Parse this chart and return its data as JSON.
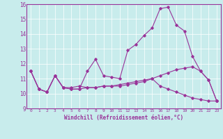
{
  "xlabel": "Windchill (Refroidissement éolien,°C)",
  "xlim": [
    -0.5,
    23.5
  ],
  "ylim": [
    9,
    16
  ],
  "xticks": [
    0,
    1,
    2,
    3,
    4,
    5,
    6,
    7,
    8,
    9,
    10,
    11,
    12,
    13,
    14,
    15,
    16,
    17,
    18,
    19,
    20,
    21,
    22,
    23
  ],
  "yticks": [
    9,
    10,
    11,
    12,
    13,
    14,
    15,
    16
  ],
  "background_color": "#c8ecec",
  "line_color": "#993399",
  "series": [
    [
      11.5,
      10.3,
      10.1,
      11.2,
      10.4,
      10.3,
      10.3,
      11.5,
      12.3,
      11.2,
      11.1,
      11.0,
      12.9,
      13.3,
      13.9,
      14.4,
      15.7,
      15.8,
      14.6,
      14.2,
      12.5,
      11.5,
      10.9,
      9.5
    ],
    [
      11.5,
      10.3,
      10.1,
      11.2,
      10.4,
      10.3,
      10.3,
      10.4,
      10.4,
      10.5,
      10.5,
      10.6,
      10.7,
      10.8,
      10.9,
      11.0,
      11.2,
      11.4,
      11.6,
      11.7,
      11.8,
      11.5,
      10.9,
      9.5
    ],
    [
      11.5,
      10.3,
      10.1,
      11.2,
      10.4,
      10.4,
      10.5,
      10.4,
      10.4,
      10.5,
      10.5,
      10.5,
      10.6,
      10.7,
      10.8,
      11.0,
      10.5,
      10.3,
      10.1,
      9.9,
      9.7,
      9.6,
      9.5,
      9.5
    ]
  ]
}
